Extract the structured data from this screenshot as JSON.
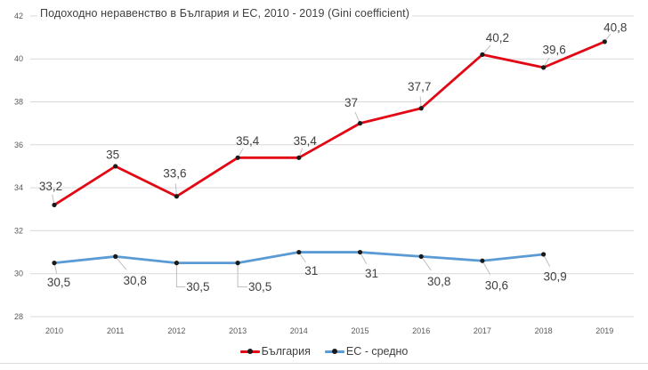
{
  "chart_data": {
    "type": "line",
    "title": "Подоходно неравенство в България и ЕС, 2010 - 2019 (Gini coefficient)",
    "categories": [
      "2010",
      "2011",
      "2012",
      "2013",
      "2014",
      "2015",
      "2016",
      "2017",
      "2018",
      "2019"
    ],
    "series": [
      {
        "name": "България",
        "color": "#e30613",
        "values": [
          33.2,
          35,
          33.6,
          35.4,
          35.4,
          37,
          37.7,
          40.2,
          39.6,
          40.8
        ],
        "labels": [
          "33,2",
          "35",
          "33,6",
          "35,4",
          "35,4",
          "37",
          "37,7",
          "40,2",
          "39,6",
          "40,8"
        ]
      },
      {
        "name": "ЕС - средно",
        "color": "#5b9bd5",
        "values": [
          30.5,
          30.8,
          30.5,
          30.5,
          31,
          31,
          30.8,
          30.6,
          30.9
        ],
        "labels": [
          "30,5",
          "30,8",
          "30,5",
          "30,5",
          "31",
          "31",
          "30,8",
          "30,6",
          "30,9"
        ]
      }
    ],
    "yticks": [
      28,
      30,
      32,
      34,
      36,
      38,
      40,
      42
    ],
    "ylim": [
      28,
      42
    ],
    "grid": true,
    "legend_position": "bottom",
    "marker_color": "#1a1a1a"
  },
  "colors": {
    "background": "#ffffff",
    "gridline": "#d9d9d9",
    "axis_text": "#595959",
    "label_text": "#3f3f3f",
    "leader": "#bfbfbf"
  }
}
